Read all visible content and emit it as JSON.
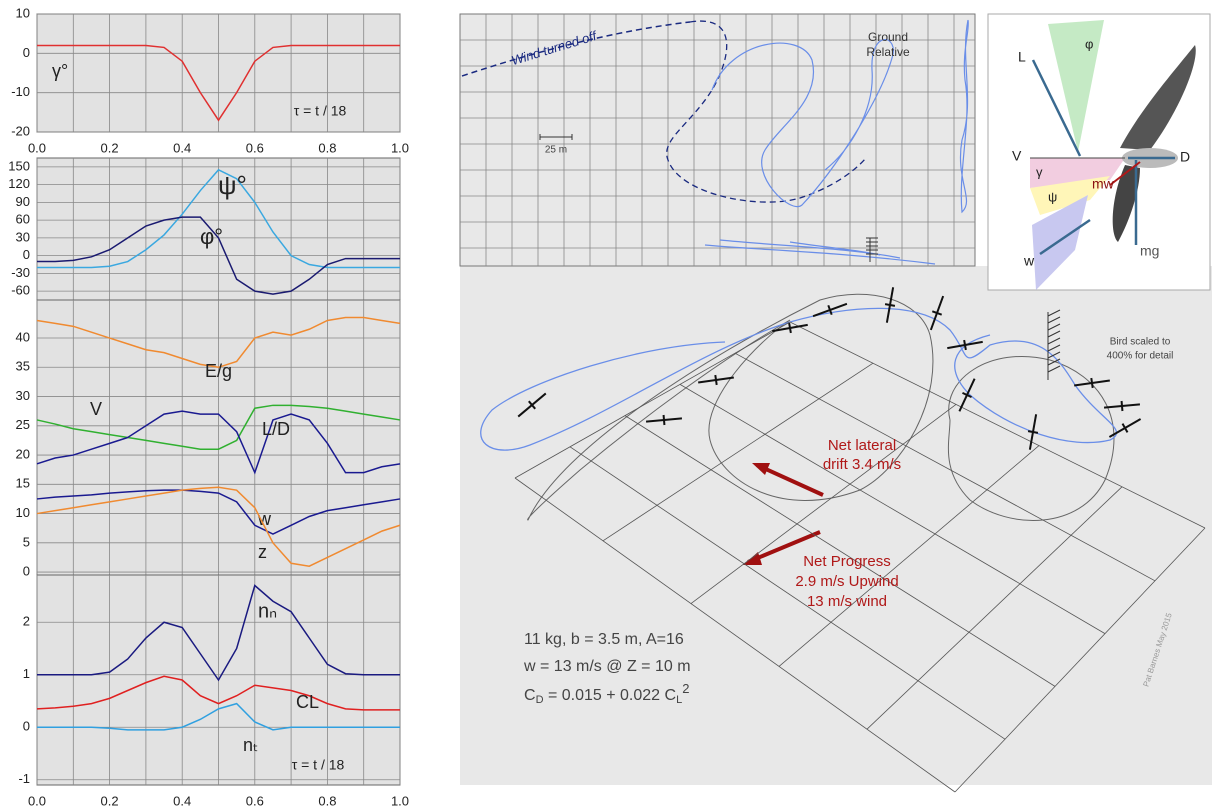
{
  "chart_data": [
    {
      "type": "line",
      "x": [
        0,
        0.05,
        0.1,
        0.15,
        0.2,
        0.25,
        0.3,
        0.35,
        0.4,
        0.45,
        0.5,
        0.55,
        0.6,
        0.65,
        0.7,
        0.75,
        0.8,
        0.85,
        0.9,
        0.95,
        1
      ],
      "series": [
        {
          "name": "γ°",
          "color": "#e03030",
          "values": [
            2,
            2,
            2,
            2,
            2,
            2,
            2,
            1.5,
            -2,
            -10,
            -17,
            -10,
            -2,
            1.5,
            2,
            2,
            2,
            2,
            2,
            2,
            2
          ]
        }
      ],
      "xlim": [
        0,
        1
      ],
      "xticks": [
        {
          "value": 0,
          "label": "0.0"
        },
        0.2,
        0.4,
        0.6,
        0.8,
        {
          "value": 1,
          "label": "1.0"
        }
      ],
      "minor_xticks": [
        0.1,
        0.3,
        0.5,
        0.7,
        0.9
      ],
      "show_xtick_labels": true,
      "ylim": [
        -20,
        10
      ],
      "yticks": [
        -20,
        -10,
        0,
        10
      ],
      "grid": true,
      "annotations": [
        "τ = t / 18"
      ]
    },
    {
      "type": "line",
      "x": [
        0,
        0.05,
        0.1,
        0.15,
        0.2,
        0.25,
        0.3,
        0.35,
        0.4,
        0.45,
        0.5,
        0.55,
        0.6,
        0.65,
        0.7,
        0.75,
        0.8,
        0.85,
        0.9,
        0.95,
        1
      ],
      "series": [
        {
          "name": "ψ°",
          "color": "#3aa8e0",
          "values": [
            -20,
            -20,
            -20,
            -20,
            -18,
            -10,
            10,
            35,
            70,
            110,
            145,
            130,
            90,
            40,
            0,
            -15,
            -20,
            -20,
            -20,
            -20,
            -20
          ]
        },
        {
          "name": "φ°",
          "color": "#1a1a70",
          "values": [
            -10,
            -10,
            -8,
            -2,
            10,
            30,
            50,
            60,
            65,
            65,
            30,
            -40,
            -60,
            -65,
            -60,
            -40,
            -15,
            -5,
            -5,
            -5,
            -5
          ]
        }
      ],
      "xlim": [
        0,
        1
      ],
      "xticks": [
        0,
        0.2,
        0.4,
        0.6,
        0.8,
        1
      ],
      "minor_xticks": [
        0.1,
        0.3,
        0.5,
        0.7,
        0.9
      ],
      "show_xtick_labels": false,
      "ylim": [
        -75,
        165
      ],
      "yticks": [
        -60,
        -30,
        0,
        30,
        60,
        90,
        120,
        150
      ],
      "grid": true
    },
    {
      "type": "line",
      "x": [
        0,
        0.05,
        0.1,
        0.15,
        0.2,
        0.25,
        0.3,
        0.35,
        0.4,
        0.45,
        0.5,
        0.55,
        0.6,
        0.65,
        0.7,
        0.75,
        0.8,
        0.85,
        0.9,
        0.95,
        1
      ],
      "series": [
        {
          "name": "E/g",
          "color": "#f08a30",
          "values": [
            43,
            42.5,
            42,
            41,
            40,
            39,
            38,
            37.5,
            36.5,
            35.5,
            35,
            36,
            40,
            41,
            40.5,
            41.5,
            43,
            43.5,
            43.5,
            43,
            42.5
          ]
        },
        {
          "name": "V",
          "color": "#30b030",
          "values": [
            26,
            25.3,
            24.5,
            24,
            23.5,
            23,
            22.5,
            22,
            21.5,
            21,
            21,
            22.5,
            28,
            28.5,
            28.5,
            28.3,
            28,
            27.5,
            27,
            26.5,
            26
          ]
        },
        {
          "name": "L/D",
          "color": "#1a1a90",
          "values": [
            18.5,
            19.5,
            20,
            21,
            22,
            23,
            25,
            27,
            27.5,
            27,
            27,
            24,
            17,
            26,
            27,
            26,
            22,
            17,
            17,
            18,
            18.5
          ]
        },
        {
          "name": "w",
          "color": "#1a1a90",
          "values": [
            12.5,
            12.8,
            13,
            13.2,
            13.5,
            13.7,
            13.9,
            14,
            14,
            13.8,
            13.5,
            12,
            8,
            6.5,
            8,
            9.5,
            10.5,
            11,
            11.5,
            12,
            12.5
          ]
        },
        {
          "name": "z",
          "color": "#f08a30",
          "values": [
            10,
            10.5,
            11,
            11.5,
            12,
            12.5,
            13,
            13.5,
            14,
            14.3,
            14.5,
            14,
            11,
            5,
            1.5,
            1,
            2.5,
            4,
            5.5,
            7,
            8
          ]
        }
      ],
      "xlim": [
        0,
        1
      ],
      "xticks": [
        0,
        0.2,
        0.4,
        0.6,
        0.8,
        1
      ],
      "minor_xticks": [
        0.1,
        0.3,
        0.5,
        0.7,
        0.9
      ],
      "show_xtick_labels": false,
      "ylim": [
        -0.5,
        46.5
      ],
      "yticks": [
        0,
        5,
        10,
        15,
        20,
        25,
        30,
        35,
        40
      ],
      "grid": true
    },
    {
      "type": "line",
      "x": [
        0,
        0.05,
        0.1,
        0.15,
        0.2,
        0.25,
        0.3,
        0.35,
        0.4,
        0.45,
        0.5,
        0.55,
        0.6,
        0.65,
        0.7,
        0.75,
        0.8,
        0.85,
        0.9,
        0.95,
        1
      ],
      "series": [
        {
          "name": "nₙ",
          "color": "#1a1a80",
          "values": [
            1,
            1,
            1,
            1,
            1.05,
            1.3,
            1.7,
            2,
            1.9,
            1.4,
            0.9,
            1.5,
            2.7,
            2.4,
            2.2,
            1.7,
            1.2,
            1.02,
            1,
            1,
            1
          ]
        },
        {
          "name": "CL",
          "color": "#e02020",
          "values": [
            0.35,
            0.37,
            0.4,
            0.45,
            0.55,
            0.7,
            0.85,
            0.97,
            0.9,
            0.6,
            0.45,
            0.6,
            0.8,
            0.75,
            0.7,
            0.6,
            0.45,
            0.35,
            0.33,
            0.33,
            0.33
          ]
        },
        {
          "name": "nₜ",
          "color": "#30a0e0",
          "values": [
            0,
            0,
            0,
            0,
            -0.02,
            -0.05,
            -0.05,
            -0.05,
            0,
            0.15,
            0.35,
            0.45,
            0.1,
            -0.05,
            0,
            0,
            0,
            0,
            0,
            0,
            0
          ]
        }
      ],
      "xlim": [
        0,
        1
      ],
      "xticks": [
        {
          "value": 0,
          "label": "0.0"
        },
        0.2,
        0.4,
        0.6,
        0.8,
        {
          "value": 1,
          "label": "1.0"
        }
      ],
      "minor_xticks": [
        0.1,
        0.3,
        0.5,
        0.7,
        0.9
      ],
      "show_xtick_labels": true,
      "ylim": [
        -1.1,
        2.9
      ],
      "yticks": [
        -1,
        0,
        1,
        2
      ],
      "grid": true,
      "annotations": [
        "τ = t / 18"
      ]
    }
  ],
  "ground_view": {
    "wind_label": "Wind turned off",
    "title": [
      "Ground",
      "Relative"
    ],
    "scale": "25 m"
  },
  "free_body": {
    "labels": [
      "L",
      "φ",
      "V",
      "γ",
      "ψ",
      "mw",
      "D",
      "w",
      "mg"
    ]
  },
  "perspective": {
    "drift": [
      "Net lateral",
      "drift 3.4 m/s"
    ],
    "progress": [
      "Net Progress",
      "2.9 m/s Upwind",
      "13 m/s wind"
    ],
    "bird_note": [
      "Bird scaled to",
      "400% for detail"
    ],
    "specs": [
      "11 kg,  b = 3.5 m,  A=16",
      "w = 13 m/s @ Z = 10 m"
    ],
    "cd": [
      "C",
      "D",
      "  = 0.015 + 0.022 C",
      "L",
      "2"
    ],
    "credit": "Pat Barnes May 2015"
  }
}
